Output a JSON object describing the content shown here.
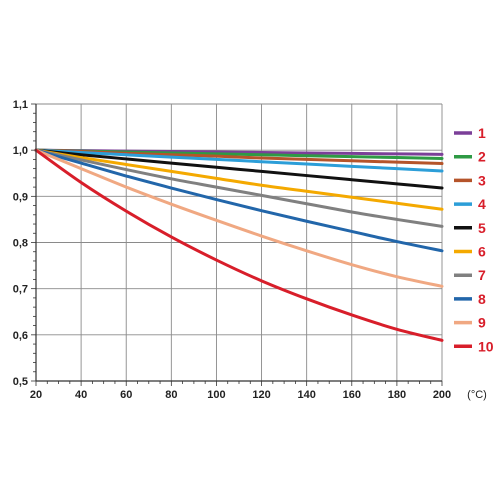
{
  "chart_data": {
    "type": "line",
    "title": "",
    "xlabel": "(°C)",
    "ylabel": "",
    "xlim": [
      20,
      200
    ],
    "ylim": [
      0.5,
      1.1
    ],
    "grid": true,
    "legend_position": "right",
    "x_ticks": [
      "20",
      "40",
      "60",
      "80",
      "100",
      "120",
      "140",
      "160",
      "180",
      "200"
    ],
    "y_ticks": [
      "0,5",
      "0,6",
      "0,7",
      "0,8",
      "0,9",
      "1,0",
      "1,1"
    ],
    "x": [
      20,
      40,
      60,
      80,
      100,
      120,
      140,
      160,
      180,
      200
    ],
    "series": [
      {
        "name": "1",
        "color": "#7b3f98",
        "values": [
          1.0,
          0.999,
          0.998,
          0.997,
          0.996,
          0.995,
          0.994,
          0.993,
          0.992,
          0.991
        ]
      },
      {
        "name": "2",
        "color": "#2e9a44",
        "values": [
          1.0,
          0.998,
          0.996,
          0.994,
          0.992,
          0.99,
          0.988,
          0.986,
          0.984,
          0.982
        ]
      },
      {
        "name": "3",
        "color": "#b5542a",
        "values": [
          1.0,
          0.997,
          0.993,
          0.99,
          0.987,
          0.983,
          0.98,
          0.977,
          0.974,
          0.971
        ]
      },
      {
        "name": "4",
        "color": "#2c9ed8",
        "values": [
          1.0,
          0.995,
          0.99,
          0.985,
          0.98,
          0.975,
          0.97,
          0.965,
          0.96,
          0.955
        ]
      },
      {
        "name": "5",
        "color": "#111111",
        "values": [
          1.0,
          0.99,
          0.981,
          0.972,
          0.963,
          0.954,
          0.945,
          0.936,
          0.927,
          0.918
        ]
      },
      {
        "name": "6",
        "color": "#f4a900",
        "values": [
          1.0,
          0.984,
          0.969,
          0.954,
          0.939,
          0.924,
          0.911,
          0.898,
          0.885,
          0.872
        ]
      },
      {
        "name": "7",
        "color": "#808080",
        "values": [
          1.0,
          0.979,
          0.958,
          0.938,
          0.92,
          0.902,
          0.884,
          0.866,
          0.85,
          0.835
        ]
      },
      {
        "name": "8",
        "color": "#2266aa",
        "values": [
          1.0,
          0.972,
          0.944,
          0.918,
          0.893,
          0.869,
          0.846,
          0.824,
          0.802,
          0.782
        ]
      },
      {
        "name": "9",
        "color": "#f0a882",
        "values": [
          1.0,
          0.96,
          0.92,
          0.883,
          0.848,
          0.814,
          0.782,
          0.752,
          0.726,
          0.705
        ]
      },
      {
        "name": "10",
        "color": "#d81e2a",
        "values": [
          1.0,
          0.93,
          0.868,
          0.812,
          0.762,
          0.717,
          0.678,
          0.643,
          0.612,
          0.588
        ]
      }
    ]
  }
}
